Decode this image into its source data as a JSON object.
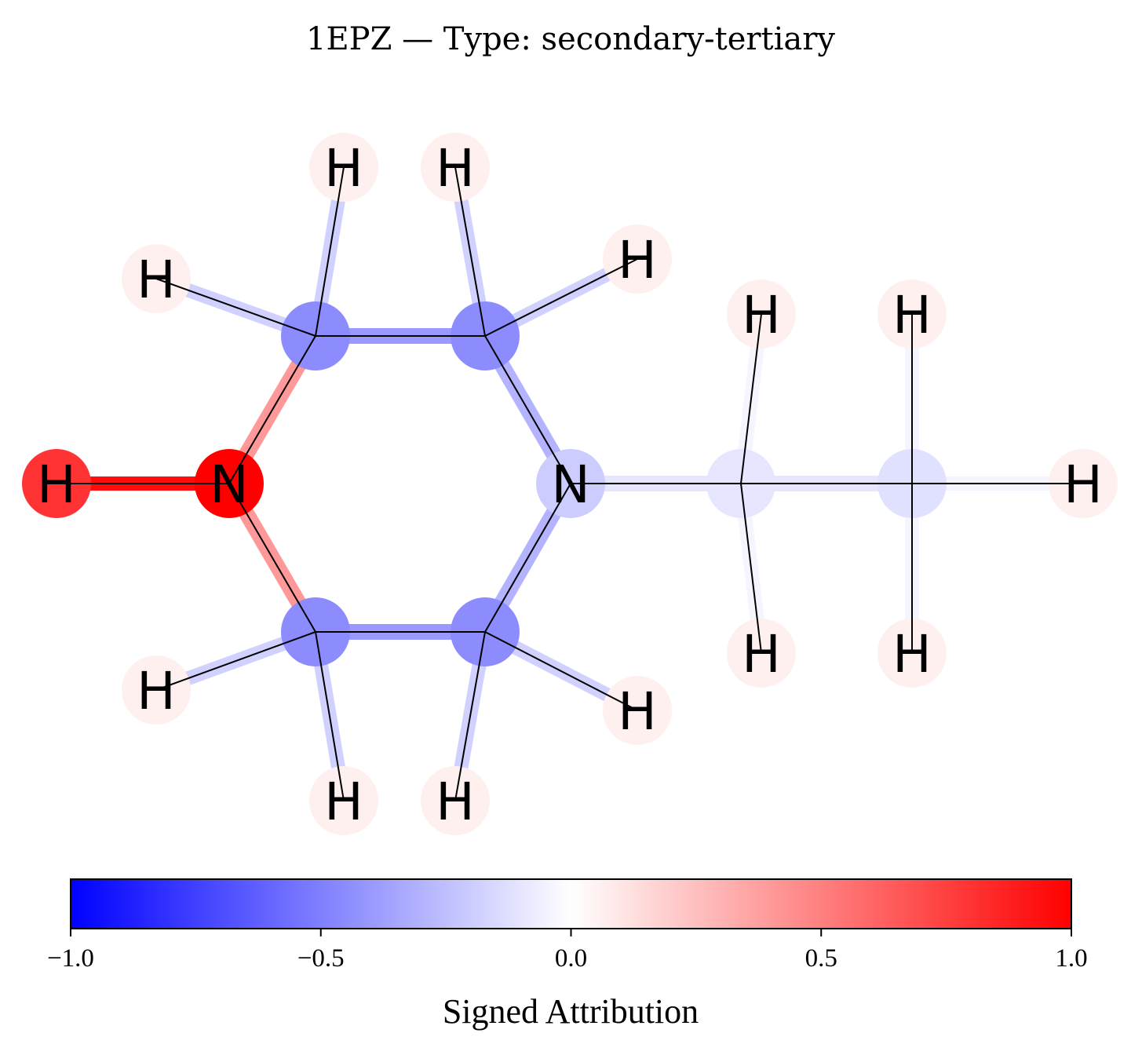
{
  "title": "1EPZ — Type: secondary-tertiary",
  "molecule": {
    "atoms": [
      {
        "id": "N1",
        "element": "N",
        "attribution": 1.0
      },
      {
        "id": "H1",
        "element": "H",
        "attribution": 0.8
      },
      {
        "id": "C2",
        "element": "C",
        "attribution": -0.45
      },
      {
        "id": "C3",
        "element": "C",
        "attribution": -0.45
      },
      {
        "id": "N4",
        "element": "N",
        "attribution": -0.2
      },
      {
        "id": "C5",
        "element": "C",
        "attribution": -0.45
      },
      {
        "id": "C6",
        "element": "C",
        "attribution": -0.45
      },
      {
        "id": "C7",
        "element": "C",
        "attribution": -0.1
      },
      {
        "id": "C8",
        "element": "C",
        "attribution": -0.12
      },
      {
        "id": "H2a",
        "element": "H",
        "attribution": 0.06
      },
      {
        "id": "H2b",
        "element": "H",
        "attribution": 0.06
      },
      {
        "id": "H3a",
        "element": "H",
        "attribution": 0.06
      },
      {
        "id": "H3b",
        "element": "H",
        "attribution": 0.06
      },
      {
        "id": "H5a",
        "element": "H",
        "attribution": 0.06
      },
      {
        "id": "H5b",
        "element": "H",
        "attribution": 0.06
      },
      {
        "id": "H6a",
        "element": "H",
        "attribution": 0.06
      },
      {
        "id": "H6b",
        "element": "H",
        "attribution": 0.06
      },
      {
        "id": "H7a",
        "element": "H",
        "attribution": 0.06
      },
      {
        "id": "H7b",
        "element": "H",
        "attribution": 0.06
      },
      {
        "id": "H8a",
        "element": "H",
        "attribution": 0.06
      },
      {
        "id": "H8b",
        "element": "H",
        "attribution": 0.06
      },
      {
        "id": "H8c",
        "element": "H",
        "attribution": 0.06
      }
    ],
    "bonds": [
      {
        "a": "N1",
        "b": "H1",
        "attribution": 0.95
      },
      {
        "a": "N1",
        "b": "C2",
        "attribution": 0.4
      },
      {
        "a": "N1",
        "b": "C6",
        "attribution": 0.4
      },
      {
        "a": "C2",
        "b": "C3",
        "attribution": -0.4
      },
      {
        "a": "C3",
        "b": "N4",
        "attribution": -0.3
      },
      {
        "a": "N4",
        "b": "C5",
        "attribution": -0.3
      },
      {
        "a": "C5",
        "b": "C6",
        "attribution": -0.4
      },
      {
        "a": "N4",
        "b": "C7",
        "attribution": -0.1
      },
      {
        "a": "C7",
        "b": "C8",
        "attribution": -0.1
      },
      {
        "a": "C2",
        "b": "H2a",
        "attribution": -0.18
      },
      {
        "a": "C2",
        "b": "H2b",
        "attribution": -0.18
      },
      {
        "a": "C3",
        "b": "H3a",
        "attribution": -0.18
      },
      {
        "a": "C3",
        "b": "H3b",
        "attribution": -0.18
      },
      {
        "a": "C5",
        "b": "H5a",
        "attribution": -0.18
      },
      {
        "a": "C5",
        "b": "H5b",
        "attribution": -0.18
      },
      {
        "a": "C6",
        "b": "H6a",
        "attribution": -0.18
      },
      {
        "a": "C6",
        "b": "H6b",
        "attribution": -0.18
      },
      {
        "a": "C7",
        "b": "H7a",
        "attribution": -0.04
      },
      {
        "a": "C7",
        "b": "H7b",
        "attribution": -0.04
      },
      {
        "a": "C8",
        "b": "H8a",
        "attribution": -0.04
      },
      {
        "a": "C8",
        "b": "H8b",
        "attribution": -0.04
      },
      {
        "a": "C8",
        "b": "H8c",
        "attribution": -0.04
      }
    ]
  },
  "colorbar": {
    "label": "Signed Attribution",
    "min": -1.0,
    "max": 1.0,
    "ticks": [
      {
        "value": -1.0,
        "label": "−1.0"
      },
      {
        "value": -0.5,
        "label": "−0.5"
      },
      {
        "value": 0.0,
        "label": "0.0"
      },
      {
        "value": 0.5,
        "label": "0.5"
      },
      {
        "value": 1.0,
        "label": "1.0"
      }
    ],
    "colormap": "bwr",
    "color_negative": "#0000ff",
    "color_zero": "#ffffff",
    "color_positive": "#ff0000"
  }
}
